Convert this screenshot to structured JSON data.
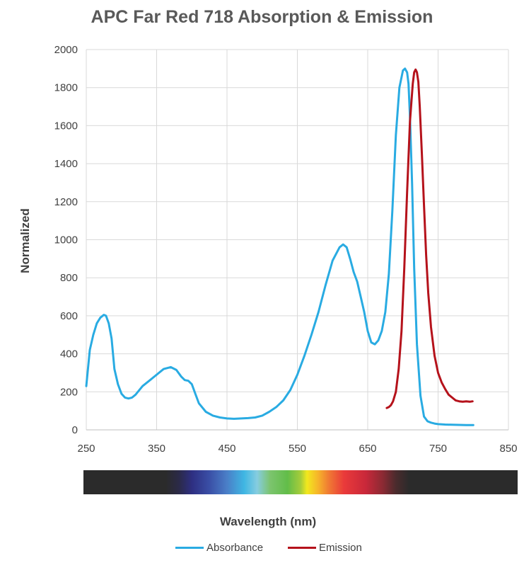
{
  "chart_data": {
    "type": "line",
    "title": "APC Far Red 718 Absorption & Emission",
    "xlabel": "Wavelength (nm)",
    "ylabel": "Normalized",
    "xlim": [
      250,
      850
    ],
    "ylim": [
      0,
      2000
    ],
    "x_ticks": [
      250,
      350,
      450,
      550,
      650,
      750,
      850
    ],
    "y_ticks": [
      0,
      200,
      400,
      600,
      800,
      1000,
      1200,
      1400,
      1600,
      1800,
      2000
    ],
    "grid": true,
    "legend_position": "bottom",
    "series": [
      {
        "name": "Absorbance",
        "color": "#29abe2",
        "x": [
          250,
          255,
          260,
          265,
          270,
          275,
          278,
          282,
          286,
          290,
          295,
          300,
          305,
          310,
          315,
          320,
          330,
          340,
          350,
          360,
          370,
          378,
          385,
          390,
          395,
          400,
          405,
          410,
          420,
          430,
          440,
          450,
          460,
          470,
          480,
          490,
          500,
          510,
          520,
          530,
          540,
          550,
          560,
          570,
          580,
          590,
          600,
          610,
          615,
          620,
          625,
          630,
          635,
          640,
          645,
          650,
          655,
          660,
          665,
          670,
          675,
          680,
          685,
          690,
          695,
          700,
          703,
          706,
          708,
          710,
          713,
          716,
          720,
          725,
          730,
          735,
          740,
          745,
          750,
          760,
          770,
          780,
          790,
          800
        ],
        "values": [
          230,
          420,
          500,
          560,
          590,
          605,
          600,
          560,
          480,
          320,
          240,
          190,
          170,
          165,
          170,
          185,
          230,
          260,
          290,
          320,
          330,
          315,
          280,
          262,
          258,
          240,
          190,
          140,
          95,
          75,
          65,
          60,
          58,
          60,
          62,
          65,
          75,
          95,
          120,
          155,
          210,
          290,
          390,
          500,
          620,
          760,
          890,
          960,
          975,
          960,
          900,
          830,
          780,
          700,
          620,
          520,
          460,
          450,
          470,
          520,
          620,
          820,
          1150,
          1550,
          1800,
          1890,
          1900,
          1880,
          1820,
          1650,
          1300,
          850,
          450,
          180,
          70,
          45,
          38,
          33,
          30,
          28,
          27,
          26,
          25,
          25
        ]
      },
      {
        "name": "Emission",
        "color": "#b5121b",
        "x": [
          677,
          680,
          683,
          686,
          690,
          694,
          698,
          702,
          706,
          710,
          714,
          716,
          718,
          720,
          722,
          724,
          727,
          730,
          733,
          736,
          740,
          745,
          750,
          755,
          760,
          765,
          770,
          775,
          780,
          785,
          790,
          795,
          799
        ],
        "values": [
          115,
          120,
          130,
          150,
          200,
          320,
          520,
          850,
          1250,
          1620,
          1820,
          1880,
          1895,
          1880,
          1830,
          1700,
          1450,
          1180,
          920,
          720,
          540,
          390,
          300,
          250,
          215,
          185,
          170,
          155,
          150,
          148,
          150,
          148,
          150
        ]
      }
    ]
  }
}
